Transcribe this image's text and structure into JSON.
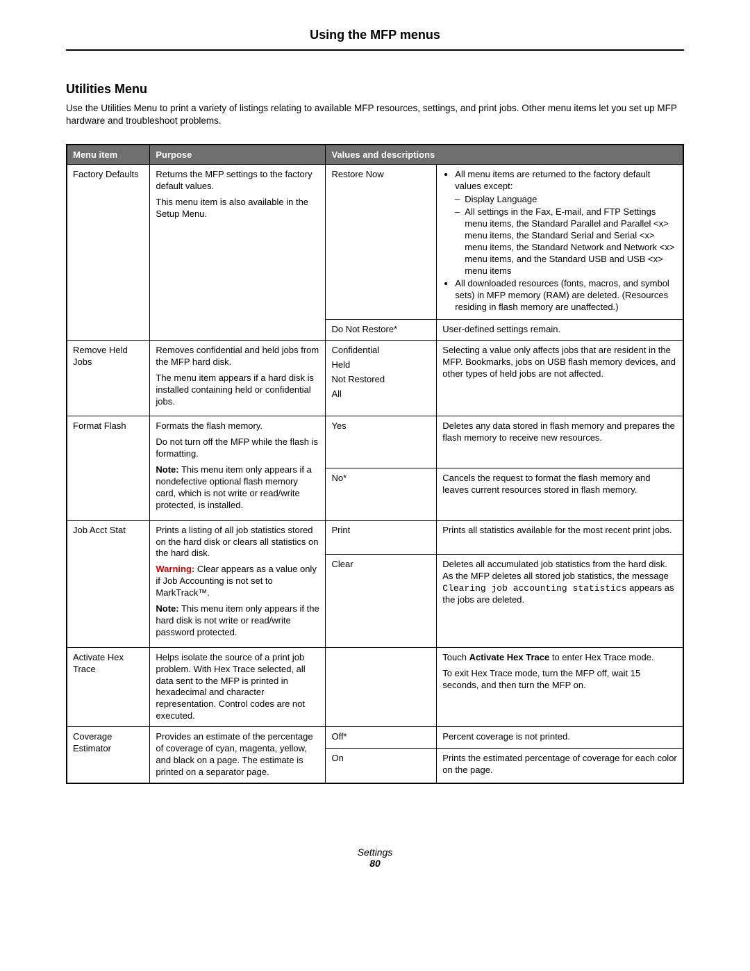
{
  "header": {
    "title": "Using the MFP menus"
  },
  "section": {
    "title": "Utilities Menu",
    "intro": "Use the Utilities Menu to print a variety of listings relating to available MFP resources, settings, and print jobs. Other menu items let you set up MFP hardware and troubleshoot problems."
  },
  "table": {
    "headers": {
      "item": "Menu item",
      "purpose": "Purpose",
      "values": "Values and descriptions"
    },
    "rows": {
      "factory_defaults": {
        "item": "Factory Defaults",
        "purpose_p1": "Returns the MFP settings to the factory default values.",
        "purpose_p2": "This menu item is also available in the Setup Menu.",
        "restore_now": {
          "value": "Restore Now",
          "desc_b1": "All menu items are returned to the factory default values except:",
          "desc_d1": "Display Language",
          "desc_d2": "All settings in the Fax, E-mail, and FTP Settings menu items, the Standard Parallel and Parallel <x> menu items, the Standard Serial and Serial <x> menu items, the Standard Network and Network <x> menu items, and the Standard USB and USB <x> menu items",
          "desc_b2": "All downloaded resources (fonts, macros, and symbol sets) in MFP memory (RAM) are deleted. (Resources residing in flash memory are unaffected.)"
        },
        "do_not_restore": {
          "value": "Do Not Restore*",
          "desc": "User-defined settings remain."
        }
      },
      "remove_held": {
        "item": "Remove Held Jobs",
        "purpose_p1": "Removes confidential and held jobs from the MFP hard disk.",
        "purpose_p2": "The menu item appears if a hard disk is installed containing held or confidential jobs.",
        "values": {
          "v1": "Confidential",
          "v2": "Held",
          "v3": "Not Restored",
          "v4": "All"
        },
        "desc": "Selecting a value only affects jobs that are resident in the MFP. Bookmarks, jobs on USB flash memory devices, and other types of held jobs are not affected."
      },
      "format_flash": {
        "item": "Format Flash",
        "purpose_p1": "Formats the flash memory.",
        "purpose_p2": "Do not turn off the MFP while the flash is formatting.",
        "purpose_note_label": "Note:",
        "purpose_note": " This menu item only appears if a nondefective optional flash memory card, which is not write or read/write protected, is installed.",
        "yes": {
          "value": "Yes",
          "desc": "Deletes any data stored in flash memory and prepares the flash memory to receive new resources."
        },
        "no": {
          "value": "No*",
          "desc": "Cancels the request to format the flash memory and leaves current resources stored in flash memory."
        }
      },
      "job_acct": {
        "item": "Job Acct Stat",
        "purpose_p1": "Prints a listing of all job statistics stored on the hard disk or clears all statistics on the hard disk.",
        "purpose_warn_label": "Warning:",
        "purpose_warn": " Clear appears as a value only if Job Accounting is not set to MarkTrack™.",
        "purpose_note_label": "Note:",
        "purpose_note": " This menu item only appears if the hard disk is not write or read/write password protected.",
        "print": {
          "value": "Print",
          "desc": "Prints all statistics available for the most recent print jobs."
        },
        "clear": {
          "value": "Clear",
          "desc_pre": "Deletes all accumulated job statistics from the hard disk. As the MFP deletes all stored job statistics, the message ",
          "desc_mono": "Clearing job accounting statistics",
          "desc_post": " appears as the jobs are deleted."
        }
      },
      "hex_trace": {
        "item": "Activate Hex Trace",
        "purpose": "Helps isolate the source of a print job problem. With Hex Trace selected, all data sent to the MFP is printed in hexadecimal and character representation. Control codes are not executed.",
        "desc_p1_pre": "Touch ",
        "desc_p1_bold": "Activate Hex Trace",
        "desc_p1_post": " to enter Hex Trace mode.",
        "desc_p2": "To exit Hex Trace mode, turn the MFP off, wait 15 seconds, and then turn the MFP on."
      },
      "coverage": {
        "item": "Coverage Estimator",
        "purpose": "Provides an estimate of the percentage of coverage of cyan, magenta, yellow, and black on a page. The estimate is printed on a separator page.",
        "off": {
          "value": "Off*",
          "desc": "Percent coverage is not printed."
        },
        "on": {
          "value": "On",
          "desc": "Prints the estimated percentage of coverage for each color on the page."
        }
      }
    }
  },
  "footer": {
    "section": "Settings",
    "page": "80"
  }
}
